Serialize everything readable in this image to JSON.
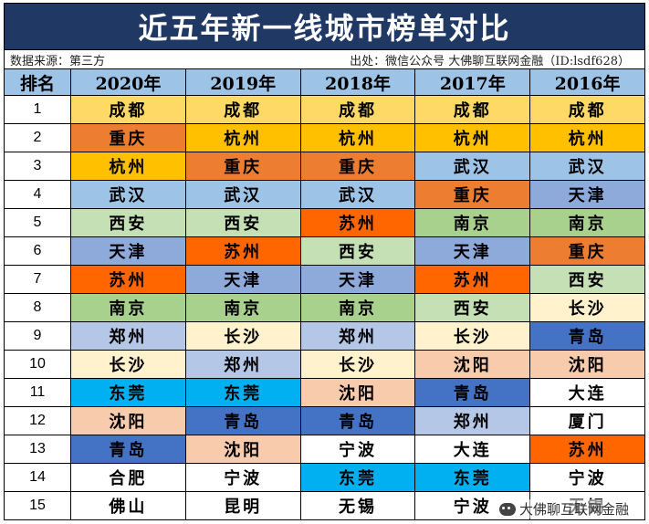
{
  "title": "近五年新一线城市榜单对比",
  "source_left": "数据来源：第三方",
  "source_right": "出处：微信公众号 大佛聊互联网金融（ID:lsdf628）",
  "header": {
    "rank": "排名",
    "years": [
      "2020年",
      "2019年",
      "2018年",
      "2017年",
      "2016年"
    ]
  },
  "city_colors": {
    "成都": "#ffd966",
    "重庆": "#ed7d31",
    "杭州": "#ffc000",
    "武汉": "#9dc3e6",
    "西安": "#c5e0b4",
    "天津": "#8eaadb",
    "苏州": "#ff6600",
    "南京": "#a9d18e",
    "郑州": "#b4c7e7",
    "长沙": "#fff2cc",
    "东莞": "#00b0f0",
    "沈阳": "#f8cbad",
    "青岛": "#4472c4",
    "合肥": "#ffffff",
    "佛山": "#ffffff",
    "宁波": "#ffffff",
    "昆明": "#ffffff",
    "无锡": "#ffffff",
    "大连": "#ffffff",
    "厦门": "#ffffff"
  },
  "rows": [
    {
      "rank": "1",
      "cities": [
        "成都",
        "成都",
        "成都",
        "成都",
        "成都"
      ]
    },
    {
      "rank": "2",
      "cities": [
        "重庆",
        "杭州",
        "杭州",
        "杭州",
        "杭州"
      ]
    },
    {
      "rank": "3",
      "cities": [
        "杭州",
        "重庆",
        "重庆",
        "武汉",
        "武汉"
      ]
    },
    {
      "rank": "4",
      "cities": [
        "武汉",
        "武汉",
        "武汉",
        "重庆",
        "天津"
      ]
    },
    {
      "rank": "5",
      "cities": [
        "西安",
        "西安",
        "苏州",
        "南京",
        "南京"
      ]
    },
    {
      "rank": "6",
      "cities": [
        "天津",
        "苏州",
        "西安",
        "天津",
        "重庆"
      ]
    },
    {
      "rank": "7",
      "cities": [
        "苏州",
        "天津",
        "天津",
        "苏州",
        "西安"
      ]
    },
    {
      "rank": "8",
      "cities": [
        "南京",
        "南京",
        "南京",
        "西安",
        "长沙"
      ]
    },
    {
      "rank": "9",
      "cities": [
        "郑州",
        "长沙",
        "郑州",
        "长沙",
        "青岛"
      ]
    },
    {
      "rank": "10",
      "cities": [
        "长沙",
        "郑州",
        "长沙",
        "沈阳",
        "沈阳"
      ]
    },
    {
      "rank": "11",
      "cities": [
        "东莞",
        "东莞",
        "沈阳",
        "青岛",
        "大连"
      ]
    },
    {
      "rank": "12",
      "cities": [
        "沈阳",
        "青岛",
        "青岛",
        "郑州",
        "厦门"
      ]
    },
    {
      "rank": "13",
      "cities": [
        "青岛",
        "沈阳",
        "宁波",
        "大连",
        "苏州"
      ]
    },
    {
      "rank": "14",
      "cities": [
        "合肥",
        "宁波",
        "东莞",
        "东莞",
        "宁波"
      ]
    },
    {
      "rank": "15",
      "cities": [
        "佛山",
        "昆明",
        "无锡",
        "宁波",
        "无锡"
      ]
    }
  ],
  "watermark": "大佛聊互联网金融"
}
